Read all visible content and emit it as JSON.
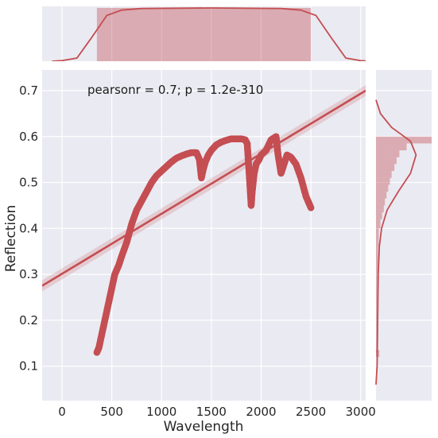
{
  "chart_data": {
    "type": "scatter",
    "title": "",
    "xlabel": "Wavelength",
    "ylabel": "Reflection",
    "xlim": [
      -200,
      3050
    ],
    "ylim": [
      0.025,
      0.745
    ],
    "xticks": [
      "0",
      "500",
      "1000",
      "1500",
      "2000",
      "2500",
      "3000"
    ],
    "xtick_values": [
      0,
      500,
      1000,
      1500,
      2000,
      2500,
      3000
    ],
    "yticks": [
      "0.1",
      "0.2",
      "0.3",
      "0.4",
      "0.5",
      "0.6",
      "0.7"
    ],
    "ytick_values": [
      0.1,
      0.2,
      0.3,
      0.4,
      0.5,
      0.6,
      0.7
    ],
    "grid": true,
    "annotation": "pearsonr = 0.7; p = 1.2e-310",
    "color": "#c44e52",
    "background": "#eaeaf2",
    "series": [
      {
        "kind": "points",
        "x": [
          350,
          370,
          400,
          430,
          460,
          500,
          530,
          570,
          600,
          650,
          700,
          750,
          800,
          850,
          900,
          950,
          1000,
          1050,
          1100,
          1150,
          1200,
          1250,
          1300,
          1350,
          1380,
          1400,
          1420,
          1440,
          1470,
          1500,
          1550,
          1600,
          1650,
          1700,
          1750,
          1800,
          1840,
          1860,
          1880,
          1900,
          1910,
          1930,
          1950,
          1980,
          2000,
          2050,
          2100,
          2150,
          2170,
          2200,
          2230,
          2260,
          2300,
          2350,
          2400,
          2450,
          2500
        ],
        "y": [
          0.13,
          0.14,
          0.17,
          0.2,
          0.23,
          0.27,
          0.3,
          0.32,
          0.34,
          0.37,
          0.41,
          0.44,
          0.46,
          0.48,
          0.5,
          0.515,
          0.525,
          0.535,
          0.545,
          0.553,
          0.558,
          0.562,
          0.565,
          0.565,
          0.55,
          0.51,
          0.53,
          0.545,
          0.56,
          0.57,
          0.582,
          0.588,
          0.592,
          0.595,
          0.595,
          0.595,
          0.593,
          0.585,
          0.52,
          0.45,
          0.48,
          0.52,
          0.54,
          0.55,
          0.56,
          0.57,
          0.593,
          0.6,
          0.56,
          0.52,
          0.54,
          0.56,
          0.555,
          0.54,
          0.51,
          0.47,
          0.445
        ]
      },
      {
        "kind": "regression",
        "x": [
          -200,
          3050
        ],
        "y": [
          0.275,
          0.7
        ]
      }
    ],
    "marginal_x": {
      "bins": [
        350,
        2500
      ],
      "histogram_height": 1.0,
      "kde": [
        [
          -100,
          0.0
        ],
        [
          0,
          0.01
        ],
        [
          150,
          0.06
        ],
        [
          300,
          0.45
        ],
        [
          450,
          0.86
        ],
        [
          600,
          0.96
        ],
        [
          800,
          0.99
        ],
        [
          1500,
          1.0
        ],
        [
          2200,
          0.99
        ],
        [
          2400,
          0.96
        ],
        [
          2550,
          0.86
        ],
        [
          2700,
          0.45
        ],
        [
          2850,
          0.06
        ],
        [
          3000,
          0.01
        ],
        [
          3100,
          0.0
        ]
      ]
    },
    "marginal_y": {
      "bins": [
        {
          "y0": 0.585,
          "y1": 0.6,
          "count": 1.0
        },
        {
          "y0": 0.57,
          "y1": 0.585,
          "count": 0.55
        },
        {
          "y0": 0.555,
          "y1": 0.57,
          "count": 0.42
        },
        {
          "y0": 0.54,
          "y1": 0.555,
          "count": 0.37
        },
        {
          "y0": 0.525,
          "y1": 0.54,
          "count": 0.33
        },
        {
          "y0": 0.51,
          "y1": 0.525,
          "count": 0.28
        },
        {
          "y0": 0.495,
          "y1": 0.51,
          "count": 0.25
        },
        {
          "y0": 0.48,
          "y1": 0.495,
          "count": 0.22
        },
        {
          "y0": 0.465,
          "y1": 0.48,
          "count": 0.19
        },
        {
          "y0": 0.45,
          "y1": 0.465,
          "count": 0.16
        },
        {
          "y0": 0.435,
          "y1": 0.45,
          "count": 0.14
        },
        {
          "y0": 0.42,
          "y1": 0.435,
          "count": 0.11
        },
        {
          "y0": 0.4,
          "y1": 0.42,
          "count": 0.08
        },
        {
          "y0": 0.36,
          "y1": 0.4,
          "count": 0.05
        },
        {
          "y0": 0.3,
          "y1": 0.36,
          "count": 0.04
        },
        {
          "y0": 0.2,
          "y1": 0.3,
          "count": 0.035
        },
        {
          "y0": 0.13,
          "y1": 0.2,
          "count": 0.03
        },
        {
          "y0": 0.12,
          "y1": 0.135,
          "count": 0.06
        }
      ],
      "kde": [
        [
          0.06,
          0.0
        ],
        [
          0.1,
          0.02
        ],
        [
          0.2,
          0.03
        ],
        [
          0.3,
          0.04
        ],
        [
          0.36,
          0.06
        ],
        [
          0.4,
          0.1
        ],
        [
          0.44,
          0.2
        ],
        [
          0.48,
          0.4
        ],
        [
          0.52,
          0.62
        ],
        [
          0.56,
          0.72
        ],
        [
          0.59,
          0.62
        ],
        [
          0.62,
          0.28
        ],
        [
          0.65,
          0.08
        ],
        [
          0.68,
          0.0
        ]
      ]
    }
  }
}
